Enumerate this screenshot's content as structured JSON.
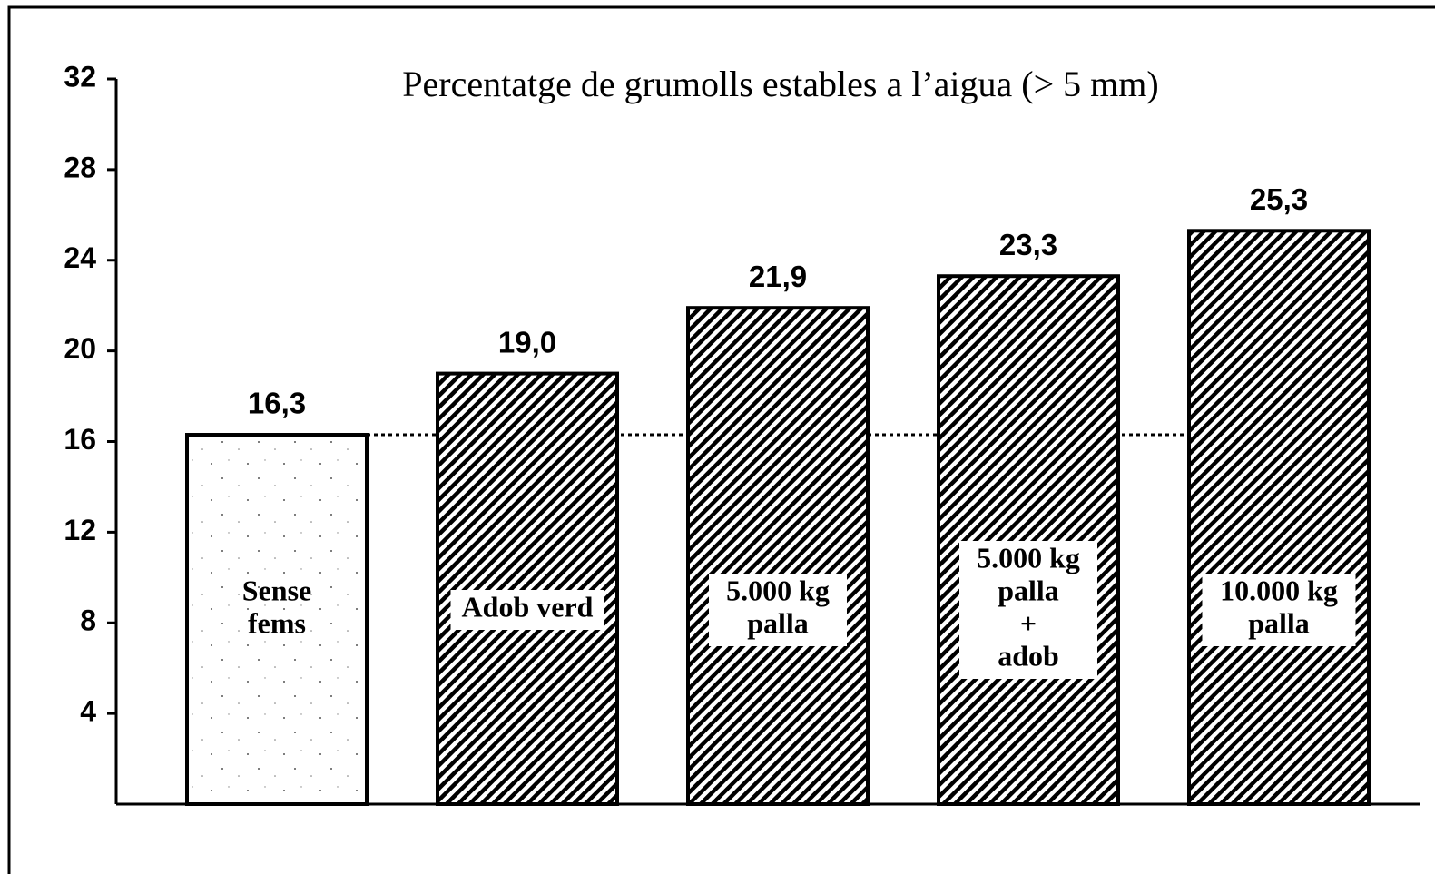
{
  "chart_data": {
    "type": "bar",
    "title": "Percentatge de grumolls estables a l’aigua (> 5 mm)",
    "categories": [
      [
        "Sense",
        "fems"
      ],
      [
        "Adob verd"
      ],
      [
        "5.000 kg",
        "palla"
      ],
      [
        "5.000 kg",
        "palla",
        "+",
        "adob"
      ],
      [
        "10.000 kg",
        "palla"
      ]
    ],
    "values": [
      16.3,
      19.0,
      21.9,
      23.3,
      25.3
    ],
    "value_labels": [
      "16,3",
      "19,0",
      "21,9",
      "23,3",
      "25,3"
    ],
    "fills": [
      "stipple",
      "hatch",
      "hatch",
      "hatch",
      "hatch"
    ],
    "color": "#000000",
    "ylim": [
      0,
      32
    ],
    "yticks": [
      4,
      8,
      12,
      16,
      20,
      24,
      28,
      32
    ],
    "grid": false
  }
}
